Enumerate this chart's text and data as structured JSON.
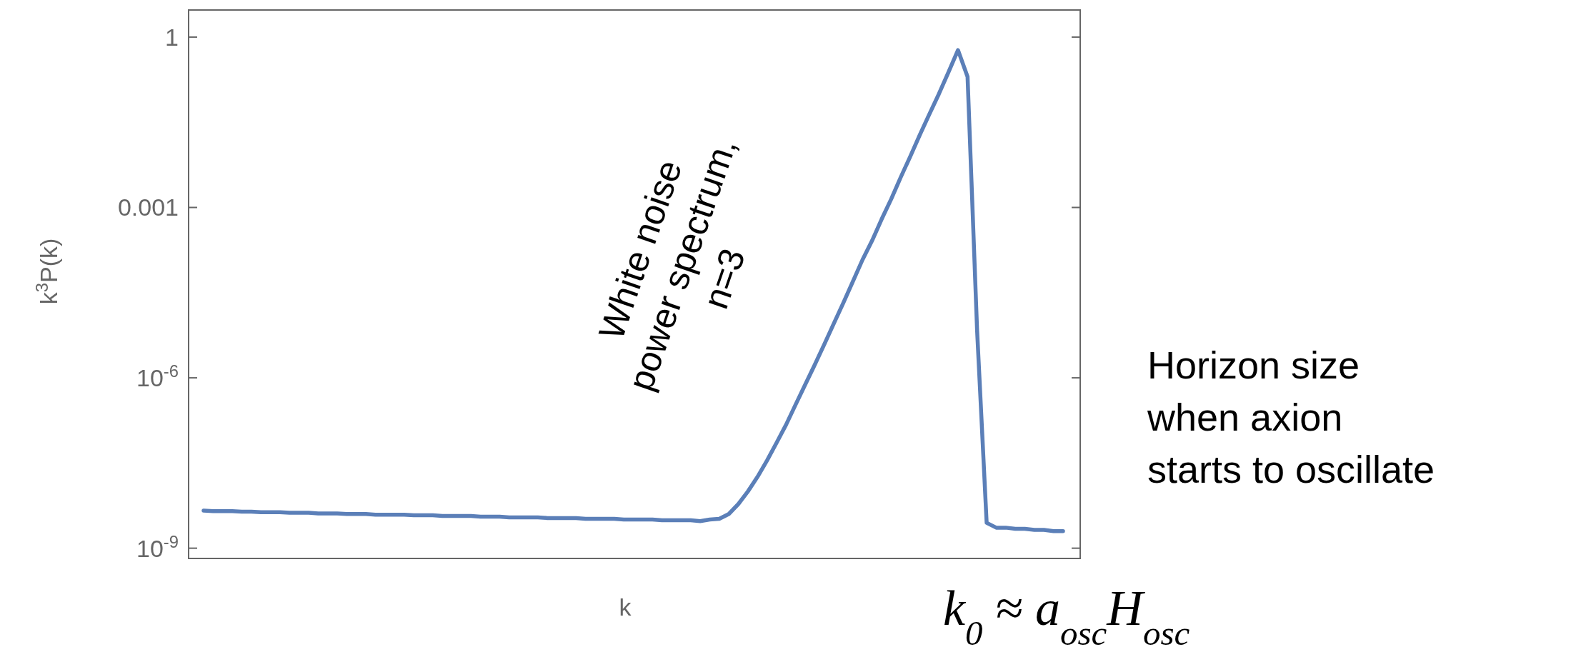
{
  "chart_data": {
    "type": "line",
    "xlabel": "k",
    "ylabel": "k$^{3}$P(k)",
    "categories": [
      null,
      null,
      null,
      null,
      null,
      null,
      null,
      null,
      null,
      null,
      null,
      null,
      null,
      null,
      null,
      null,
      null,
      null,
      null,
      null,
      null,
      null,
      null,
      null,
      null,
      null,
      null,
      null,
      null,
      null,
      null,
      null,
      null,
      null,
      null,
      null,
      null,
      null,
      null,
      null,
      null,
      null,
      null,
      null,
      null,
      null,
      null,
      null,
      null,
      null,
      null,
      null,
      null,
      null,
      null,
      null,
      null,
      null,
      null,
      null,
      null,
      null,
      null,
      null,
      null,
      null,
      null,
      null,
      null,
      null,
      null,
      null,
      null,
      null,
      null,
      null,
      null,
      null,
      null,
      null,
      null,
      null,
      null,
      null,
      null,
      null,
      null,
      null,
      null,
      null,
      null
    ],
    "series": [
      {
        "color": "#5b7fb8",
        "values": [
          4.6e-09,
          4.5e-09,
          4.5e-09,
          4.5e-09,
          4.4e-09,
          4.4e-09,
          4.3e-09,
          4.3e-09,
          4.3e-09,
          4.2e-09,
          4.2e-09,
          4.2e-09,
          4.1e-09,
          4.1e-09,
          4.1e-09,
          4e-09,
          4e-09,
          4e-09,
          3.9e-09,
          3.9e-09,
          3.9e-09,
          3.9e-09,
          3.8e-09,
          3.8e-09,
          3.8e-09,
          3.7e-09,
          3.7e-09,
          3.7e-09,
          3.7e-09,
          3.6e-09,
          3.6e-09,
          3.6e-09,
          3.5e-09,
          3.5e-09,
          3.5e-09,
          3.5e-09,
          3.4e-09,
          3.4e-09,
          3.4e-09,
          3.4e-09,
          3.3e-09,
          3.3e-09,
          3.3e-09,
          3.3e-09,
          3.2e-09,
          3.2e-09,
          3.2e-09,
          3.2e-09,
          3.1e-09,
          3.1e-09,
          3.1e-09,
          3.1e-09,
          3e-09,
          3.2e-09,
          3.3e-09,
          4e-09,
          6e-09,
          1e-08,
          1.8e-08,
          3.5e-08,
          7.2e-08,
          1.5e-07,
          3.4e-07,
          7.6e-07,
          1.7e-06,
          3.9e-06,
          9.1e-06,
          2.1e-05,
          5e-05,
          0.00012,
          0.00026,
          0.00062,
          0.0014,
          0.0034,
          0.0079,
          0.019,
          0.044,
          0.1,
          0.24,
          0.59,
          0.2,
          6.8e-06,
          2.8e-09,
          2.3e-09,
          2.3e-09,
          2.2e-09,
          2.2e-09,
          2.1e-09,
          2.1e-09,
          2e-09,
          2e-09
        ]
      }
    ],
    "log": "y",
    "ylim": [
      6.6e-10,
      3
    ],
    "yticks": [
      1,
      0.001,
      {
        "value": 1e-06,
        "label": "10$^{-6}$"
      },
      {
        "value": 1e-09,
        "label": "10$^{-9}$"
      }
    ],
    "tick_labels": "y",
    "line_style": "solid",
    "annotations": [
      "White noise\npower spectrum,\nn=3",
      "Horizon size\nwhen axion\nstarts to oscillate",
      "k$_{0}$ ≈ a$_{osc}$H$_{osc}$"
    ]
  }
}
